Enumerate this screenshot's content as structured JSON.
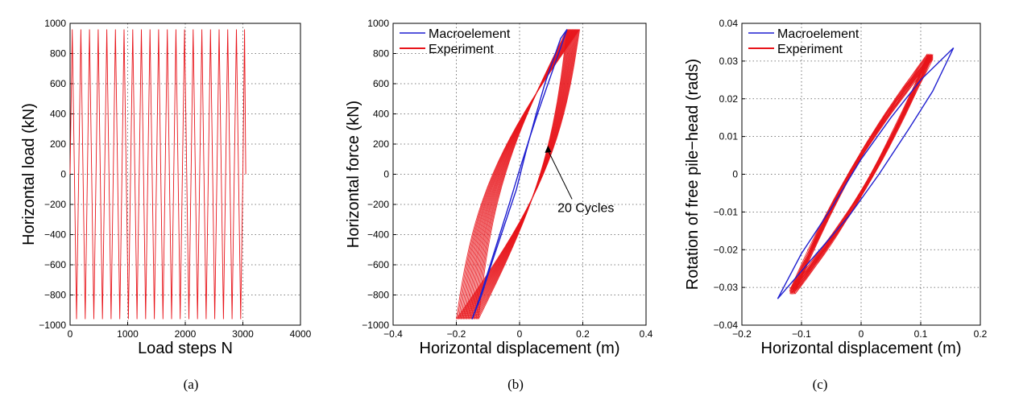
{
  "chart_data": [
    {
      "type": "line",
      "panel_caption": "(a)",
      "xlabel": "Load steps N",
      "ylabel": "Horizontal load (kN)",
      "xlim": [
        0,
        4000
      ],
      "ylim": [
        -1000,
        1000
      ],
      "xticks": [
        0,
        1000,
        2000,
        3000,
        4000
      ],
      "yticks": [
        -1000,
        -800,
        -600,
        -400,
        -200,
        0,
        200,
        400,
        600,
        800,
        1000
      ],
      "grid": true,
      "legend": null,
      "colors": {
        "signal": "#e8141a"
      },
      "series": [
        {
          "cycle_starts": [
            0,
            150,
            300,
            450,
            600,
            750,
            900,
            1050,
            1200,
            1350,
            1500,
            1650,
            1800,
            1950,
            2100,
            2250,
            2400,
            2550,
            2700,
            2850
          ],
          "cycle_length": 150,
          "end_step": 3050,
          "max_load": 960,
          "min_load": -960
        }
      ]
    },
    {
      "type": "line",
      "panel_caption": "(b)",
      "xlabel": "Horizontal displacement (m)",
      "ylabel": "Horizontal force (kN)",
      "xlim": [
        -0.4,
        0.4
      ],
      "ylim": [
        -1000,
        1000
      ],
      "xticks": [
        -0.4,
        -0.2,
        0,
        0.2,
        0.4
      ],
      "yticks": [
        -1000,
        -800,
        -600,
        -400,
        -200,
        0,
        200,
        400,
        600,
        800,
        1000
      ],
      "grid": true,
      "legend": "top-left",
      "annotations": [
        {
          "text": "20 Cycles",
          "x": 0.12,
          "y": -250,
          "arrow_to": [
            0.09,
            190
          ]
        }
      ],
      "series": [
        {
          "name": "Macroelement",
          "color": "#1f1fd0",
          "ascending": [
            [
              -0.15,
              -960
            ],
            [
              -0.12,
              -780
            ],
            [
              -0.09,
              -580
            ],
            [
              -0.06,
              -380
            ],
            [
              -0.03,
              -180
            ],
            [
              0.0,
              30
            ],
            [
              0.03,
              230
            ],
            [
              0.06,
              420
            ],
            [
              0.09,
              600
            ],
            [
              0.12,
              780
            ],
            [
              0.15,
              960
            ]
          ],
          "descending": [
            [
              0.15,
              960
            ],
            [
              0.13,
              900
            ],
            [
              0.11,
              780
            ],
            [
              0.08,
              600
            ],
            [
              0.05,
              380
            ],
            [
              0.02,
              150
            ],
            [
              -0.01,
              -100
            ],
            [
              -0.05,
              -350
            ],
            [
              -0.09,
              -600
            ],
            [
              -0.12,
              -800
            ],
            [
              -0.15,
              -960
            ]
          ]
        },
        {
          "name": "Experiment",
          "color": "#e8141a",
          "cycles": 20,
          "x_first_cycle": [
            -0.13,
            0.15
          ],
          "x_last_cycle": [
            -0.2,
            0.19
          ],
          "max_force": 960,
          "min_force": -960
        }
      ]
    },
    {
      "type": "line",
      "panel_caption": "(c)",
      "xlabel": "Horizontal displacement (m)",
      "ylabel": "Rotation of free pile−head (rads)",
      "xlim": [
        -0.2,
        0.2
      ],
      "ylim": [
        -0.04,
        0.04
      ],
      "xticks": [
        -0.2,
        -0.1,
        0,
        0.1,
        0.2
      ],
      "yticks": [
        -0.04,
        -0.03,
        -0.02,
        -0.01,
        0,
        0.01,
        0.02,
        0.03,
        0.04
      ],
      "grid": true,
      "legend": "top-left",
      "series": [
        {
          "name": "Macroelement",
          "color": "#1f1fd0",
          "upper": [
            [
              -0.14,
              -0.033
            ],
            [
              -0.1,
              -0.021
            ],
            [
              -0.05,
              -0.009
            ],
            [
              0.0,
              0.004
            ],
            [
              0.05,
              0.015
            ],
            [
              0.1,
              0.025
            ],
            [
              0.155,
              0.0335
            ]
          ],
          "lower": [
            [
              0.155,
              0.0335
            ],
            [
              0.12,
              0.022
            ],
            [
              0.08,
              0.012
            ],
            [
              0.03,
              0.0
            ],
            [
              -0.02,
              -0.011
            ],
            [
              -0.08,
              -0.022
            ],
            [
              -0.14,
              -0.033
            ]
          ]
        },
        {
          "name": "Experiment",
          "color": "#e8141a",
          "cycles": 20,
          "x_range": [
            -0.12,
            0.12
          ],
          "y_range": [
            -0.031,
            0.031
          ]
        }
      ]
    }
  ]
}
